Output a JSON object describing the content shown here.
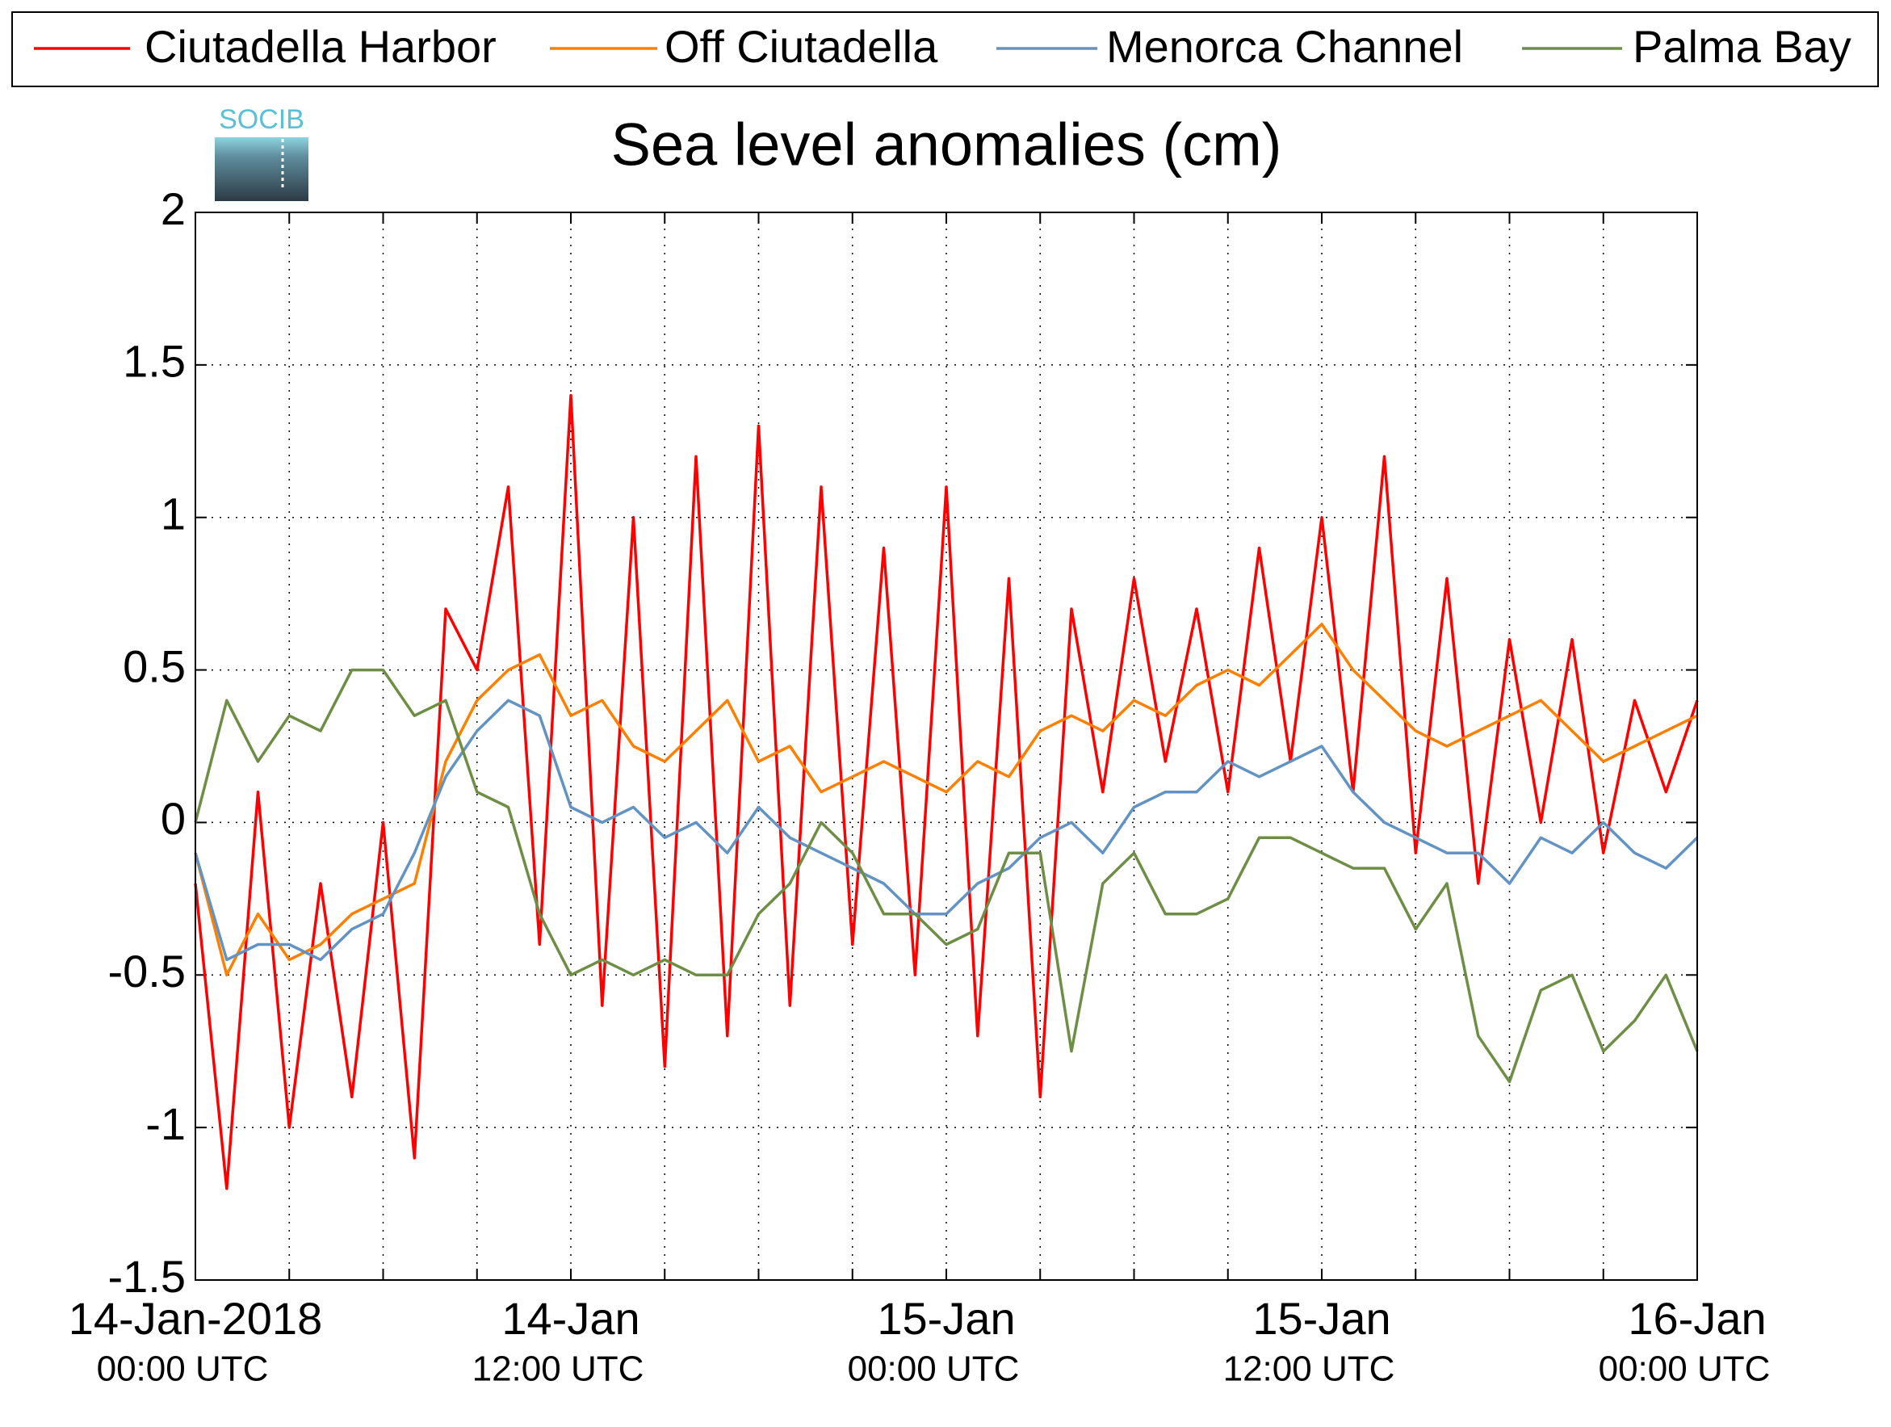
{
  "chart_data": {
    "type": "line",
    "title": "Sea level anomalies (cm)",
    "logo_text": "SOCIB",
    "x": [
      "2018-01-14T00:00",
      "2018-01-14T01:00",
      "2018-01-14T02:00",
      "2018-01-14T03:00",
      "2018-01-14T04:00",
      "2018-01-14T05:00",
      "2018-01-14T06:00",
      "2018-01-14T07:00",
      "2018-01-14T08:00",
      "2018-01-14T09:00",
      "2018-01-14T10:00",
      "2018-01-14T11:00",
      "2018-01-14T12:00",
      "2018-01-14T13:00",
      "2018-01-14T14:00",
      "2018-01-14T15:00",
      "2018-01-14T16:00",
      "2018-01-14T17:00",
      "2018-01-14T18:00",
      "2018-01-14T19:00",
      "2018-01-14T20:00",
      "2018-01-14T21:00",
      "2018-01-14T22:00",
      "2018-01-14T23:00",
      "2018-01-15T00:00",
      "2018-01-15T01:00",
      "2018-01-15T02:00",
      "2018-01-15T03:00",
      "2018-01-15T04:00",
      "2018-01-15T05:00",
      "2018-01-15T06:00",
      "2018-01-15T07:00",
      "2018-01-15T08:00",
      "2018-01-15T09:00",
      "2018-01-15T10:00",
      "2018-01-15T11:00",
      "2018-01-15T12:00",
      "2018-01-15T13:00",
      "2018-01-15T14:00",
      "2018-01-15T15:00",
      "2018-01-15T16:00",
      "2018-01-15T17:00",
      "2018-01-15T18:00",
      "2018-01-15T19:00",
      "2018-01-15T20:00",
      "2018-01-15T21:00",
      "2018-01-15T22:00",
      "2018-01-15T23:00",
      "2018-01-16T00:00"
    ],
    "series": [
      {
        "name": "Ciutadella Harbor",
        "color": "#ff0000",
        "values": [
          -0.2,
          -1.2,
          0.1,
          -1.0,
          -0.2,
          -0.9,
          0.0,
          -1.1,
          0.7,
          0.5,
          1.1,
          -0.4,
          1.4,
          -0.6,
          1.0,
          -0.8,
          1.2,
          -0.7,
          1.3,
          -0.6,
          1.1,
          -0.4,
          0.9,
          -0.5,
          1.1,
          -0.7,
          0.8,
          -0.9,
          0.7,
          0.1,
          0.8,
          0.2,
          0.7,
          0.1,
          0.9,
          0.2,
          1.0,
          0.1,
          1.2,
          -0.1,
          0.8,
          -0.2,
          0.6,
          0.0,
          0.6,
          -0.1,
          0.4,
          0.1,
          0.4
        ]
      },
      {
        "name": "Off Ciutadella",
        "color": "#ff8000",
        "values": [
          -0.1,
          -0.5,
          -0.3,
          -0.45,
          -0.4,
          -0.3,
          -0.25,
          -0.2,
          0.2,
          0.4,
          0.5,
          0.55,
          0.35,
          0.4,
          0.25,
          0.2,
          0.3,
          0.4,
          0.2,
          0.25,
          0.1,
          0.15,
          0.2,
          0.15,
          0.1,
          0.2,
          0.15,
          0.3,
          0.35,
          0.3,
          0.4,
          0.35,
          0.45,
          0.5,
          0.45,
          0.55,
          0.65,
          0.5,
          0.4,
          0.3,
          0.25,
          0.3,
          0.35,
          0.4,
          0.3,
          0.2,
          0.25,
          0.3,
          0.35
        ]
      },
      {
        "name": "Menorca Channel",
        "color": "#6293c2",
        "values": [
          -0.1,
          -0.45,
          -0.4,
          -0.4,
          -0.45,
          -0.35,
          -0.3,
          -0.1,
          0.15,
          0.3,
          0.4,
          0.35,
          0.05,
          0.0,
          0.05,
          -0.05,
          0.0,
          -0.1,
          0.05,
          -0.05,
          -0.1,
          -0.15,
          -0.2,
          -0.3,
          -0.3,
          -0.2,
          -0.15,
          -0.05,
          0.0,
          -0.1,
          0.05,
          0.1,
          0.1,
          0.2,
          0.15,
          0.2,
          0.25,
          0.1,
          0.0,
          -0.05,
          -0.1,
          -0.1,
          -0.2,
          -0.05,
          -0.1,
          0.0,
          -0.1,
          -0.15,
          -0.05
        ]
      },
      {
        "name": "Palma Bay",
        "color": "#6e8e45",
        "values": [
          0.0,
          0.4,
          0.2,
          0.35,
          0.3,
          0.5,
          0.5,
          0.35,
          0.4,
          0.1,
          0.05,
          -0.3,
          -0.5,
          -0.45,
          -0.5,
          -0.45,
          -0.5,
          -0.5,
          -0.3,
          -0.2,
          0.0,
          -0.1,
          -0.3,
          -0.3,
          -0.4,
          -0.35,
          -0.1,
          -0.1,
          -0.75,
          -0.2,
          -0.1,
          -0.3,
          -0.3,
          -0.25,
          -0.05,
          -0.05,
          -0.1,
          -0.15,
          -0.15,
          -0.35,
          -0.2,
          -0.7,
          -0.85,
          -0.55,
          -0.5,
          -0.75,
          -0.65,
          -0.5,
          -0.75
        ]
      }
    ],
    "xlim": [
      "2018-01-14T00:00",
      "2018-01-16T00:00"
    ],
    "xticks": [
      {
        "value": "2018-01-14T00:00",
        "label": "14-Jan-2018",
        "sublabel": "00:00 UTC"
      },
      {
        "value": "2018-01-14T12:00",
        "label": "14-Jan",
        "sublabel": "12:00 UTC"
      },
      {
        "value": "2018-01-15T00:00",
        "label": "15-Jan",
        "sublabel": "00:00 UTC"
      },
      {
        "value": "2018-01-15T12:00",
        "label": "15-Jan",
        "sublabel": "12:00 UTC"
      },
      {
        "value": "2018-01-16T00:00",
        "label": "16-Jan",
        "sublabel": "00:00 UTC"
      }
    ],
    "xminor": [
      "2018-01-14T03:00",
      "2018-01-14T06:00",
      "2018-01-14T09:00",
      "2018-01-14T15:00",
      "2018-01-14T18:00",
      "2018-01-14T21:00",
      "2018-01-15T03:00",
      "2018-01-15T06:00",
      "2018-01-15T09:00",
      "2018-01-15T15:00",
      "2018-01-15T18:00",
      "2018-01-15T21:00"
    ],
    "ylim": [
      -1.5,
      2
    ],
    "yticks": [
      -1.5,
      -1,
      -0.5,
      0,
      0.5,
      1,
      1.5,
      2
    ],
    "grid": true,
    "legend": "top"
  }
}
